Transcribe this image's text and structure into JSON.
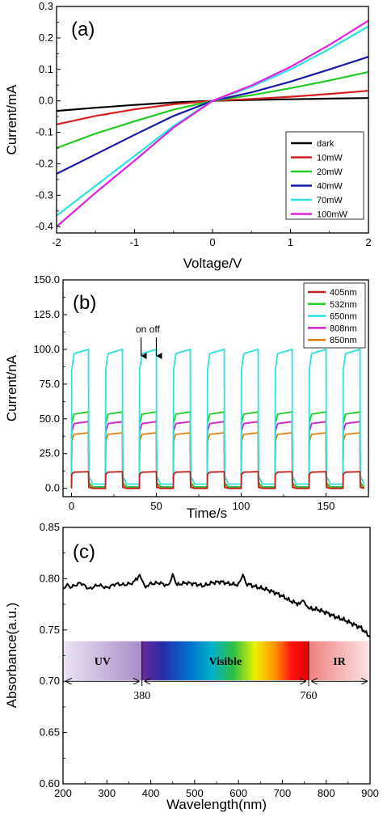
{
  "chart_data": [
    {
      "type": "line",
      "panel_label": "(a)",
      "xlabel": "Voltage/V",
      "ylabel": "Current/mA",
      "xlim": [
        -2,
        2
      ],
      "ylim": [
        -0.42,
        0.3
      ],
      "xticks": [
        -2,
        -1,
        0,
        1,
        2
      ],
      "yticks": [
        -0.4,
        -0.3,
        -0.2,
        -0.1,
        0.0,
        0.1,
        0.2,
        0.3
      ],
      "xtick_labels": [
        "-2",
        "-1",
        "0",
        "1",
        "2"
      ],
      "ytick_labels": [
        "-0.4",
        "-0.3",
        "-0.2",
        "-0.1",
        "0.0",
        "0.1",
        "0.2",
        "0.3"
      ],
      "legend_position": "lower-right",
      "series": [
        {
          "name": "dark",
          "color": "#000000",
          "x": [
            -2,
            -1.5,
            -1,
            -0.5,
            0,
            0.5,
            1,
            1.5,
            2
          ],
          "y": [
            -0.032,
            -0.022,
            -0.013,
            -0.005,
            0,
            0.003,
            0.005,
            0.007,
            0.009
          ]
        },
        {
          "name": "10mW",
          "color": "#d42020",
          "x": [
            -2,
            -1.5,
            -1,
            -0.5,
            0,
            0.5,
            1,
            1.5,
            2
          ],
          "y": [
            -0.075,
            -0.048,
            -0.027,
            -0.011,
            0,
            0.006,
            0.013,
            0.022,
            0.032
          ]
        },
        {
          "name": "20mW",
          "color": "#22cc22",
          "x": [
            -2,
            -1.5,
            -1,
            -0.5,
            0,
            0.5,
            1,
            1.5,
            2
          ],
          "y": [
            -0.15,
            -0.104,
            -0.065,
            -0.028,
            0,
            0.018,
            0.04,
            0.065,
            0.092
          ]
        },
        {
          "name": "40mW",
          "color": "#1a1aa8",
          "x": [
            -2,
            -1.5,
            -1,
            -0.5,
            0,
            0.5,
            1,
            1.5,
            2
          ],
          "y": [
            -0.232,
            -0.17,
            -0.108,
            -0.048,
            0,
            0.027,
            0.061,
            0.1,
            0.14
          ]
        },
        {
          "name": "70mW",
          "color": "#2ee0e0",
          "x": [
            -2,
            -1.5,
            -1,
            -0.5,
            0,
            0.5,
            1,
            1.5,
            2
          ],
          "y": [
            -0.365,
            -0.27,
            -0.175,
            -0.08,
            0,
            0.045,
            0.1,
            0.165,
            0.237
          ]
        },
        {
          "name": "100mW",
          "color": "#e020e0",
          "x": [
            -2,
            -1.5,
            -1,
            -0.5,
            0,
            0.5,
            1,
            1.5,
            2
          ],
          "y": [
            -0.4,
            -0.292,
            -0.19,
            -0.085,
            0,
            0.049,
            0.108,
            0.178,
            0.255
          ]
        }
      ]
    },
    {
      "type": "line",
      "panel_label": "(b)",
      "xlabel": "Time/s",
      "ylabel": "Current/nA",
      "xlim": [
        -5,
        175
      ],
      "ylim": [
        -6,
        150
      ],
      "xticks": [
        0,
        50,
        100,
        150
      ],
      "yticks": [
        0,
        25,
        50,
        75,
        100,
        125,
        150
      ],
      "xtick_labels": [
        "0",
        "50",
        "100",
        "150"
      ],
      "ytick_labels": [
        "0.0",
        "25.0",
        "50.0",
        "75.0",
        "100.0",
        "125.0",
        "150.0"
      ],
      "annotation": "on off",
      "annotation_arrows_x": [
        41,
        50
      ],
      "period_s": 20,
      "on_duration_s": 10,
      "cycles": 9,
      "legend_position": "top-right",
      "series": [
        {
          "name": "405nm",
          "color": "#c02020",
          "on_level": 12,
          "off_level": 0
        },
        {
          "name": "532nm",
          "color": "#22cc22",
          "on_level": 55,
          "off_level": 1
        },
        {
          "name": "650nm",
          "color": "#2ee0e0",
          "on_level": 100,
          "off_level": 3
        },
        {
          "name": "808nm",
          "color": "#cc22cc",
          "on_level": 48,
          "off_level": 1
        },
        {
          "name": "850nm",
          "color": "#e08010",
          "on_level": 40,
          "off_level": 0
        }
      ]
    },
    {
      "type": "line",
      "panel_label": "(c)",
      "xlabel": "Wavelength(nm)",
      "ylabel": "Absorbance(a.u.)",
      "xlim": [
        200,
        900
      ],
      "ylim": [
        0.6,
        0.85
      ],
      "xticks": [
        200,
        300,
        400,
        500,
        600,
        700,
        800,
        900
      ],
      "yticks": [
        0.6,
        0.65,
        0.7,
        0.75,
        0.8,
        0.85
      ],
      "xtick_labels": [
        "200",
        "300",
        "400",
        "500",
        "600",
        "700",
        "800",
        "900"
      ],
      "ytick_labels": [
        "0.60",
        "0.65",
        "0.70",
        "0.75",
        "0.80",
        "0.85"
      ],
      "series": [
        {
          "name": "",
          "color": "#000000",
          "x": [
            200,
            210,
            220,
            240,
            260,
            280,
            300,
            320,
            340,
            360,
            375,
            385,
            400,
            420,
            440,
            450,
            460,
            480,
            500,
            520,
            540,
            560,
            580,
            600,
            610,
            620,
            640,
            660,
            680,
            700,
            720,
            740,
            750,
            760,
            780,
            800,
            820,
            840,
            860,
            880,
            900
          ],
          "y": [
            0.79,
            0.795,
            0.792,
            0.796,
            0.79,
            0.794,
            0.791,
            0.795,
            0.794,
            0.796,
            0.804,
            0.792,
            0.795,
            0.796,
            0.793,
            0.805,
            0.794,
            0.796,
            0.795,
            0.793,
            0.796,
            0.797,
            0.795,
            0.794,
            0.803,
            0.795,
            0.792,
            0.79,
            0.787,
            0.783,
            0.778,
            0.775,
            0.779,
            0.771,
            0.77,
            0.767,
            0.763,
            0.76,
            0.756,
            0.752,
            0.743
          ]
        }
      ],
      "spectrum_bands": [
        {
          "label": "UV",
          "from": 200,
          "to": 380
        },
        {
          "label": "Visible",
          "from": 380,
          "to": 760
        },
        {
          "label": "IR",
          "from": 760,
          "to": 900
        }
      ],
      "spectrum_markers": [
        "380",
        "760"
      ]
    }
  ]
}
